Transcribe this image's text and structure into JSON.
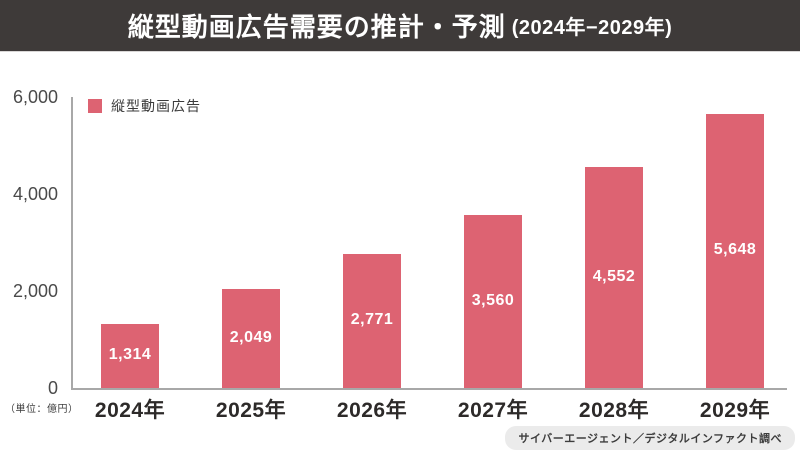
{
  "title": {
    "main": "縦型動画広告需要の推計・予測",
    "range": "(2024年−2029年)"
  },
  "legend": {
    "label": "縦型動画広告",
    "color": "#dd6372"
  },
  "unit_label": "（単位：億円）",
  "source_label": "サイバーエージェント／デジタルインファクト調べ",
  "colors": {
    "header_background": "#3e3a39",
    "bar": "#dd6372",
    "axis": "#a8a8a8",
    "background": "#ffffff",
    "value_label_text": "#ffffff"
  },
  "chart_data": {
    "type": "bar",
    "title": "縦型動画広告需要の推計・予測 (2024年−2029年)",
    "series_name": "縦型動画広告",
    "categories": [
      "2024年",
      "2025年",
      "2026年",
      "2027年",
      "2028年",
      "2029年"
    ],
    "values": [
      1314,
      2049,
      2771,
      3560,
      4552,
      5648
    ],
    "value_labels": [
      "1,314",
      "2,049",
      "2,771",
      "3,560",
      "4,552",
      "5,648"
    ],
    "xlabel": "",
    "ylabel": "（単位：億円）",
    "ylim": [
      0,
      6000
    ],
    "yticks": [
      0,
      2000,
      4000,
      6000
    ],
    "ytick_labels": [
      "0",
      "2,000",
      "4,000",
      "6,000"
    ],
    "grid": false,
    "legend_position": "top-left",
    "bar_color": "#dd6372"
  }
}
